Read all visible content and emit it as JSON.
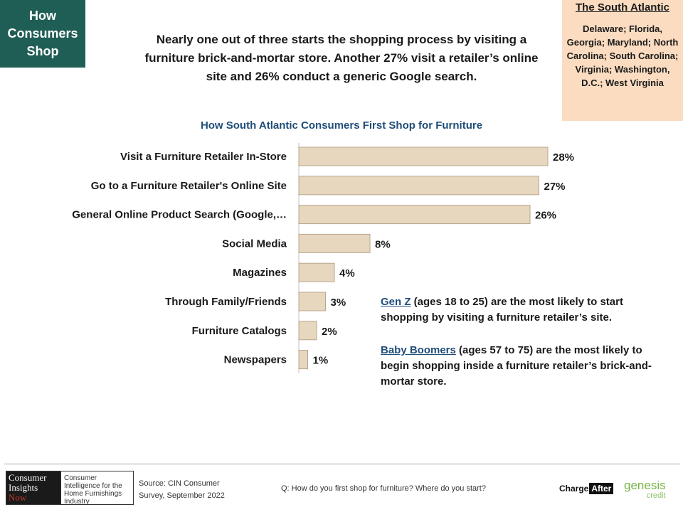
{
  "badge": {
    "line1": "How",
    "line2": "Consumers",
    "line3": "Shop"
  },
  "region": {
    "title": "The South Atlantic",
    "states": "Delaware; Florida, Georgia; Maryland; North Carolina; South Carolina; Virginia; Washington, D.C.; West Virginia"
  },
  "headline": "Nearly one out of three starts the shopping process by visiting a furniture brick-and-mortar  store. Another 27% visit a retailer’s online site and 26% conduct a generic Google search.",
  "notes": [
    {
      "lead": "Gen Z",
      "text": " (ages 18 to 25) are the most likely to start shopping by visiting a furniture retailer’s site."
    },
    {
      "lead": "Baby Boomers",
      "text": " (ages 57 to 75) are the most likely to begin shopping inside a furniture retailer’s brick-and-mortar store."
    }
  ],
  "logo": {
    "l1a": "Consumer",
    "l1b": "Insights",
    "l1c": "Now",
    "l2": "Consumer Intelligence for the Home Furnishings Industry"
  },
  "source": {
    "line1": "Source: CIN Consumer",
    "line2": "Survey, September  2022"
  },
  "question": "Q: How do you first shop for furniture? Where do you start?",
  "sponsor1": {
    "a": "Charge",
    "b": "After"
  },
  "sponsor2": {
    "a": "genesis",
    "b": "credit"
  },
  "colors": {
    "badge": "#1f5e55",
    "region_bg": "#fbdcc0",
    "bar_fill": "#e8d7bf",
    "bar_stroke": "#b8a68e",
    "title": "#1f4e79"
  },
  "chart_data": {
    "type": "bar",
    "orientation": "horizontal",
    "title": "How South Atlantic Consumers First Shop for Furniture",
    "categories": [
      "Visit a Furniture Retailer In-Store",
      "Go to a Furniture Retailer's Online Site",
      "General Online Product Search (Google,…",
      "Social Media",
      "Magazines",
      "Through Family/Friends",
      "Furniture Catalogs",
      "Newspapers"
    ],
    "values": [
      28,
      27,
      26,
      8,
      4,
      3,
      2,
      1
    ],
    "value_labels": [
      "28%",
      "27%",
      "26%",
      "8%",
      "4%",
      "3%",
      "2%",
      "1%"
    ],
    "unit": "%",
    "xlim": [
      0,
      30
    ],
    "grid": false
  }
}
